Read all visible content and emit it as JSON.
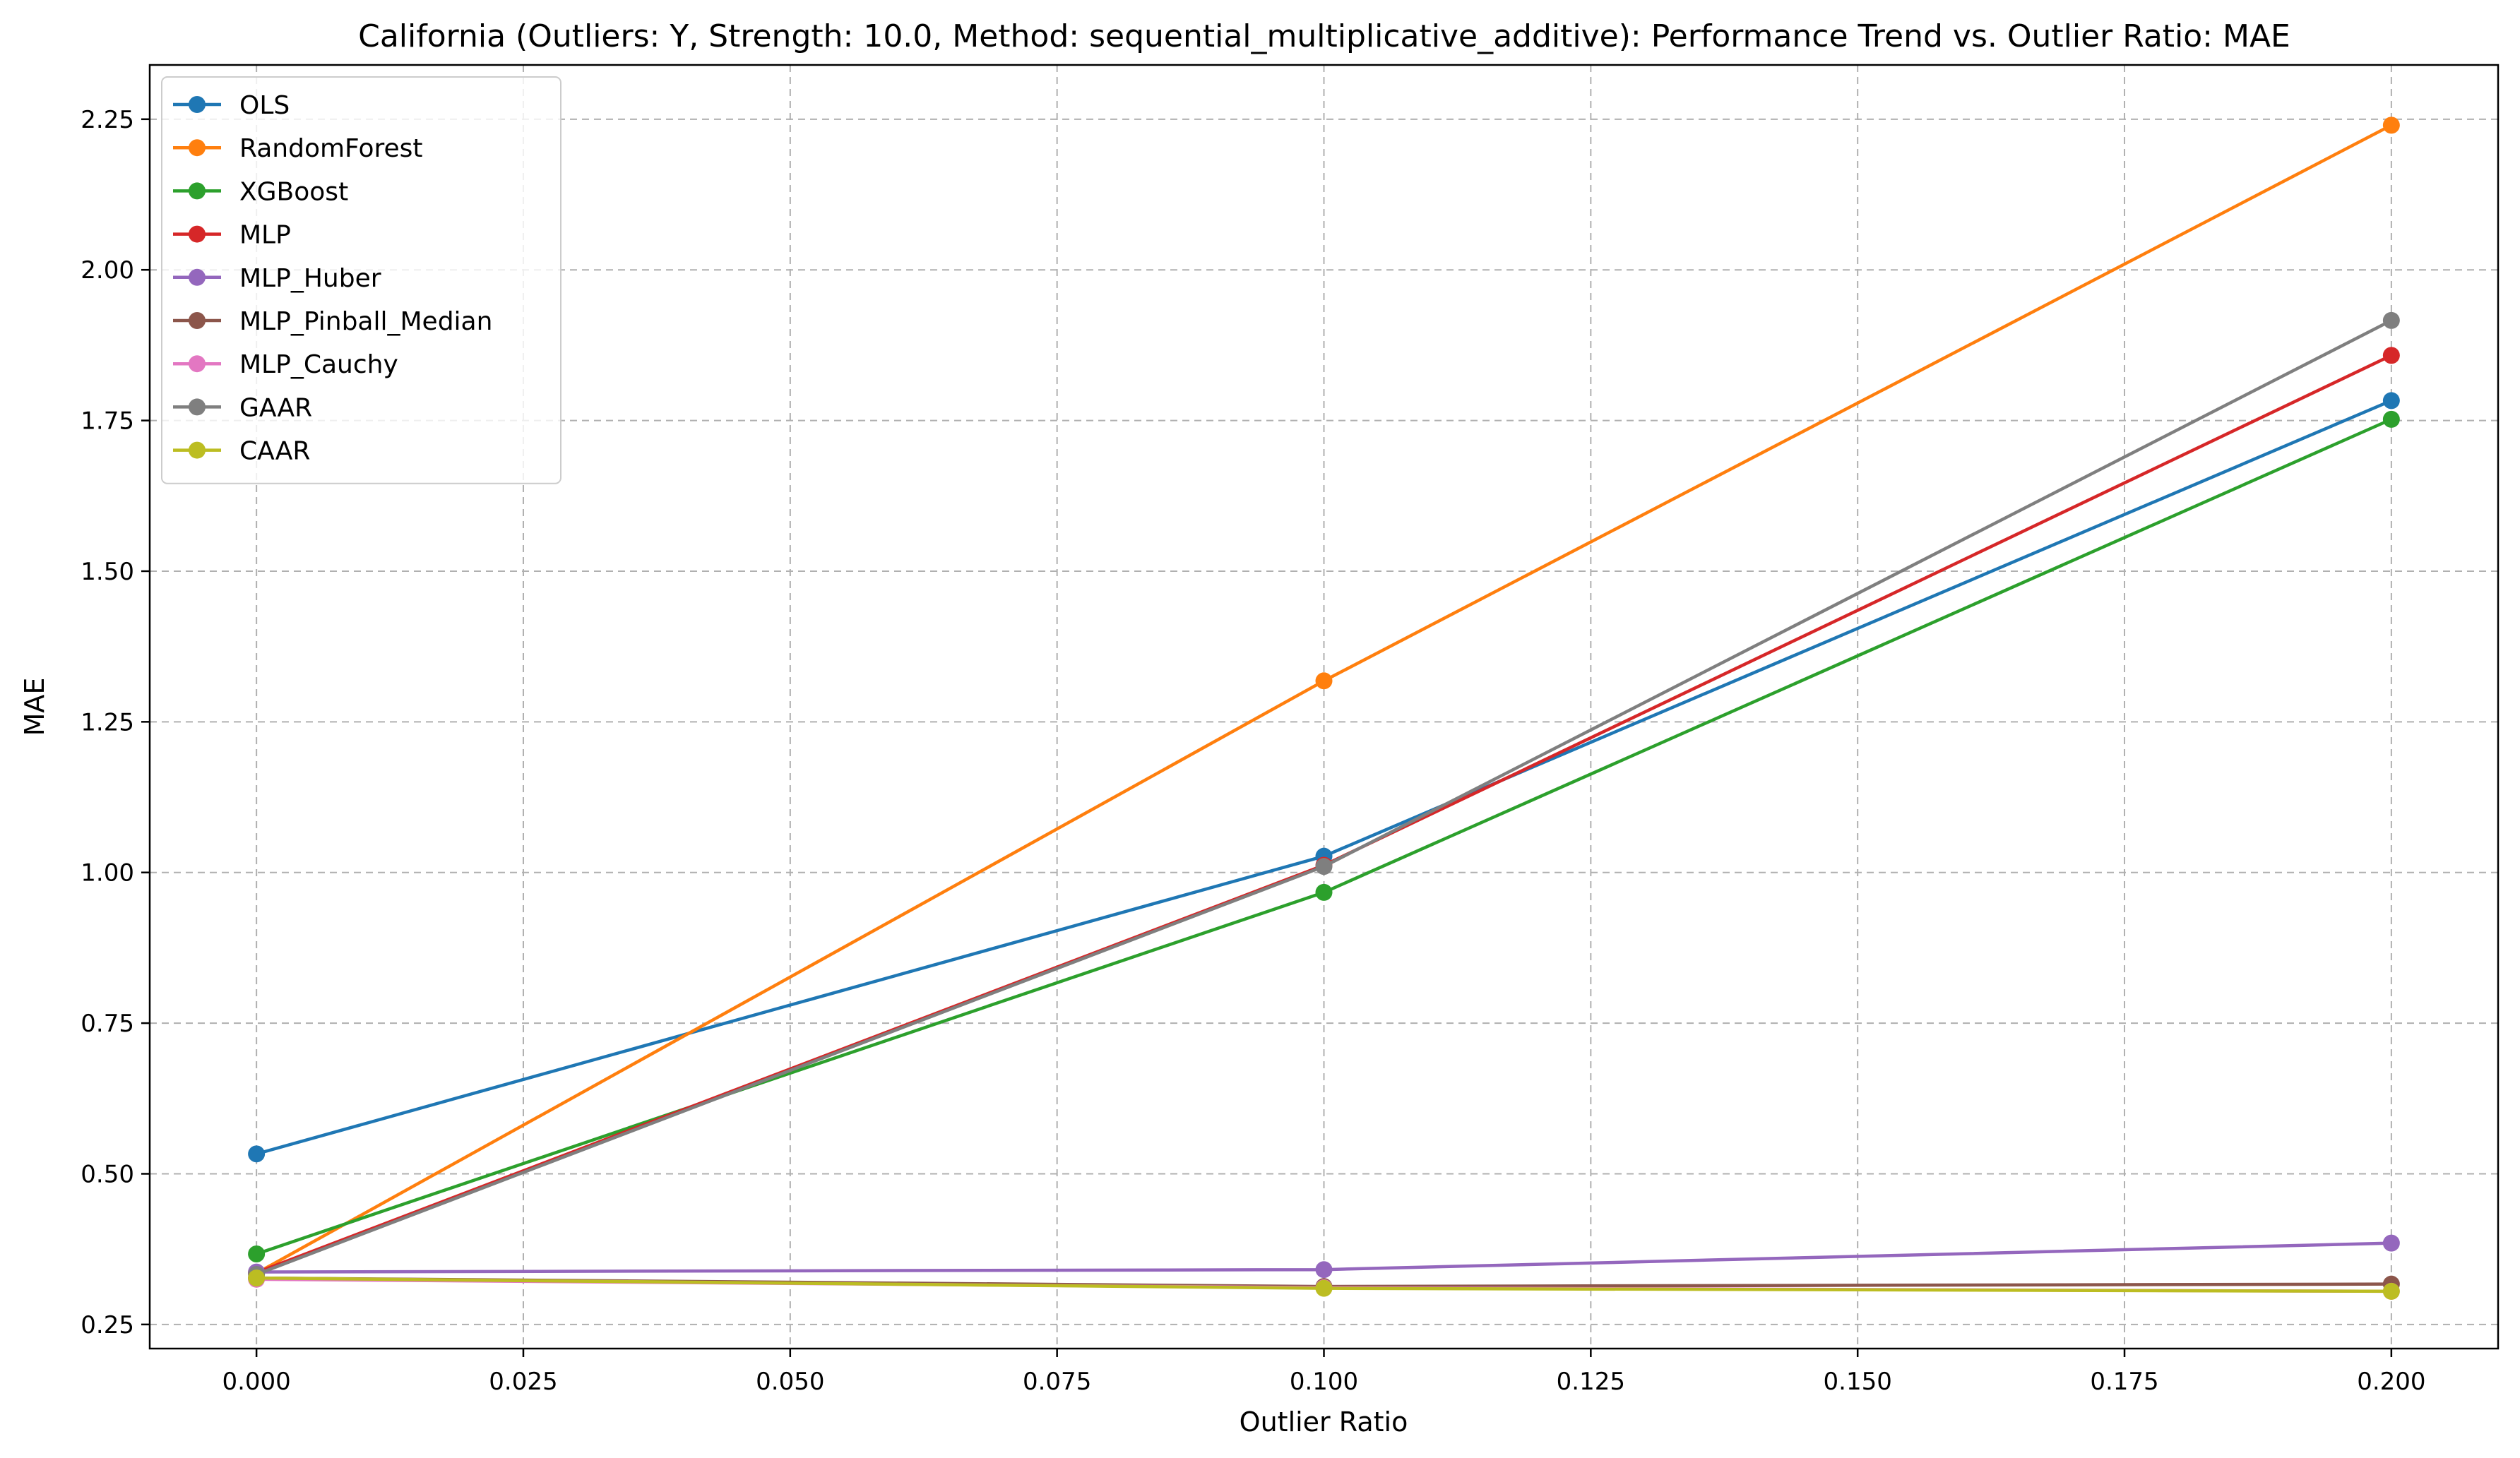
{
  "chart_data": {
    "type": "line",
    "title": "California (Outliers: Y, Strength: 10.0, Method: sequential_multiplicative_additive): Performance Trend vs. Outlier Ratio: MAE",
    "xlabel": "Outlier Ratio",
    "ylabel": "MAE",
    "x": [
      0.0,
      0.1,
      0.2
    ],
    "xlim": [
      -0.01,
      0.21
    ],
    "ylim": [
      0.21,
      2.34
    ],
    "xticks": [
      0.0,
      0.025,
      0.05,
      0.075,
      0.1,
      0.125,
      0.15,
      0.175,
      0.2
    ],
    "xtick_labels": [
      "0.000",
      "0.025",
      "0.050",
      "0.075",
      "0.100",
      "0.125",
      "0.150",
      "0.175",
      "0.200"
    ],
    "yticks": [
      0.25,
      0.5,
      0.75,
      1.0,
      1.25,
      1.5,
      1.75,
      2.0,
      2.25
    ],
    "ytick_labels": [
      "0.25",
      "0.50",
      "0.75",
      "1.00",
      "1.25",
      "1.50",
      "1.75",
      "2.00",
      "2.25"
    ],
    "grid": true,
    "legend_position": "top-left",
    "series": [
      {
        "name": "OLS",
        "color": "#1f77b4",
        "values": [
          0.533,
          1.027,
          1.783
        ]
      },
      {
        "name": "RandomForest",
        "color": "#ff7f0e",
        "values": [
          0.335,
          1.318,
          2.24
        ]
      },
      {
        "name": "XGBoost",
        "color": "#2ca02c",
        "values": [
          0.367,
          0.967,
          1.752
        ]
      },
      {
        "name": "MLP",
        "color": "#d62728",
        "values": [
          0.336,
          1.012,
          1.858
        ]
      },
      {
        "name": "MLP_Huber",
        "color": "#9467bd",
        "values": [
          0.337,
          0.341,
          0.385
        ]
      },
      {
        "name": "MLP_Pinball_Median",
        "color": "#8c564b",
        "values": [
          0.327,
          0.313,
          0.317
        ]
      },
      {
        "name": "MLP_Cauchy",
        "color": "#e377c2",
        "values": [
          0.325,
          0.311,
          0.305
        ]
      },
      {
        "name": "GAAR",
        "color": "#7f7f7f",
        "values": [
          0.333,
          1.01,
          1.916
        ]
      },
      {
        "name": "CAAR",
        "color": "#bcbd22",
        "values": [
          0.327,
          0.31,
          0.305
        ]
      }
    ]
  }
}
